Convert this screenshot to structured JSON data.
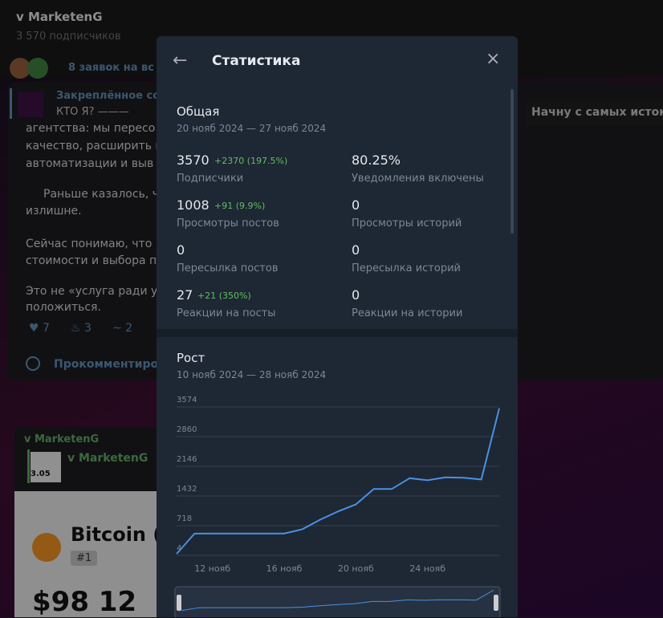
{
  "background": {
    "channel_name": "v MarketenG",
    "subscribers": "3 570 подписчиков",
    "requests": "8 заявок на вс",
    "pinned_label": "Закреплённое со",
    "pinned_text": "КТО Я? ———",
    "message_lines": [
      "агентства: мы пересо",
      "качество, расширить к",
      "автоматизации и выв",
      "Раньше казалось, ч",
      "излишне.",
      "Сейчас понимаю, что",
      "стоимости и выбора п",
      "Это не «услуга ради ус",
      "положиться."
    ],
    "reactions": [
      "7",
      "3",
      "2"
    ],
    "comment": "Прокомментиро",
    "side_note": "Начну с самых истоко",
    "post_channel": "v MarketenG",
    "post_card_channel": "v MarketenG",
    "card_price": "3.05",
    "coin_name": "Bitcoin (",
    "coin_rank": "#1",
    "coin_price": "$98 12"
  },
  "modal": {
    "title": "Статистика",
    "overview": {
      "title": "Общая",
      "period": "20 нояб 2024 — 27 нояб 2024",
      "stats": [
        {
          "value": "3570",
          "change": "+2370 (197.5%)",
          "label": "Подписчики"
        },
        {
          "value": "80.25%",
          "label": "Уведомления включены"
        },
        {
          "value": "1008",
          "change": "+91 (9.9%)",
          "label": "Просмотры постов"
        },
        {
          "value": "0",
          "label": "Просмотры историй"
        },
        {
          "value": "0",
          "label": "Пересылка постов"
        },
        {
          "value": "0",
          "label": "Пересылка историй"
        },
        {
          "value": "27",
          "change": "+21 (350%)",
          "label": "Реакции на посты"
        },
        {
          "value": "0",
          "label": "Реакции на истории"
        }
      ]
    }
  },
  "chart_data": {
    "type": "line",
    "title": "Рост",
    "subtitle": "10 нояб 2024 — 28 нояб 2024",
    "categories": [
      null,
      null,
      "12 нояб",
      null,
      null,
      null,
      "16 нояб",
      null,
      null,
      null,
      "20 нояб",
      null,
      null,
      null,
      "24 нояб",
      null,
      null,
      null,
      null
    ],
    "values": [
      40,
      527,
      530,
      530,
      530,
      530,
      530,
      630,
      860,
      1060,
      1230,
      1600,
      1600,
      1860,
      1810,
      1880,
      1870,
      1830,
      3540
    ],
    "color": "#4a90e2",
    "ylim": [
      4,
      3574
    ],
    "yticks": [
      4,
      718,
      1432,
      2146,
      2860,
      3574
    ],
    "grid": true
  }
}
